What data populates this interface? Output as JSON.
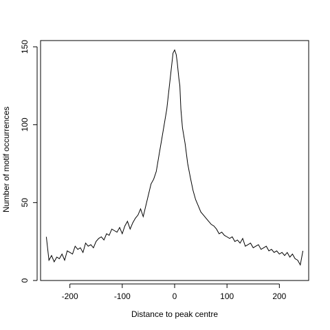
{
  "chart_data": {
    "type": "line",
    "title": "",
    "xlabel": "Distance to peak centre",
    "ylabel": "Number of motif occurrences",
    "xlim": [
      -256,
      256
    ],
    "ylim": [
      0,
      154
    ],
    "xticks": [
      -200,
      -100,
      0,
      100,
      200
    ],
    "xtick_labels": [
      "-200",
      "-100",
      "0",
      "100",
      "200"
    ],
    "yticks": [
      0,
      50,
      100,
      150
    ],
    "ytick_labels": [
      "0",
      "50",
      "100",
      "150"
    ],
    "grid": false,
    "line_color": "#000000",
    "series": [
      {
        "x": [
          -245,
          -240,
          -235,
          -230,
          -225,
          -220,
          -215,
          -210,
          -205,
          -200,
          -195,
          -190,
          -185,
          -180,
          -175,
          -170,
          -165,
          -160,
          -155,
          -150,
          -145,
          -140,
          -135,
          -130,
          -125,
          -120,
          -115,
          -110,
          -105,
          -100,
          -95,
          -90,
          -85,
          -80,
          -75,
          -70,
          -65,
          -60,
          -55,
          -50,
          -45,
          -40,
          -35,
          -30,
          -25,
          -20,
          -15,
          -10,
          -5,
          -3,
          0,
          3,
          5,
          8,
          10,
          12,
          15,
          20,
          25,
          30,
          35,
          40,
          45,
          50,
          55,
          60,
          65,
          70,
          75,
          80,
          85,
          90,
          95,
          100,
          105,
          110,
          115,
          120,
          125,
          130,
          135,
          140,
          145,
          150,
          155,
          160,
          165,
          170,
          175,
          180,
          185,
          190,
          195,
          200,
          205,
          210,
          215,
          220,
          225,
          230,
          235,
          240,
          245
        ],
        "values": [
          28,
          13,
          16,
          12,
          15,
          14,
          17,
          13,
          19,
          18,
          17,
          22,
          20,
          21,
          18,
          24,
          22,
          23,
          21,
          25,
          27,
          28,
          26,
          30,
          29,
          33,
          32,
          31,
          34,
          30,
          35,
          38,
          33,
          37,
          40,
          42,
          46,
          41,
          48,
          55,
          62,
          65,
          70,
          80,
          90,
          100,
          110,
          125,
          140,
          146,
          148,
          145,
          140,
          130,
          125,
          110,
          98,
          88,
          75,
          66,
          58,
          52,
          48,
          44,
          42,
          40,
          38,
          36,
          35,
          33,
          30,
          31,
          29,
          28,
          27,
          28,
          25,
          26,
          24,
          27,
          22,
          23,
          24,
          21,
          22,
          23,
          20,
          21,
          22,
          19,
          20,
          18,
          19,
          17,
          18,
          16,
          18,
          15,
          17,
          14,
          13,
          10,
          19
        ]
      }
    ]
  }
}
